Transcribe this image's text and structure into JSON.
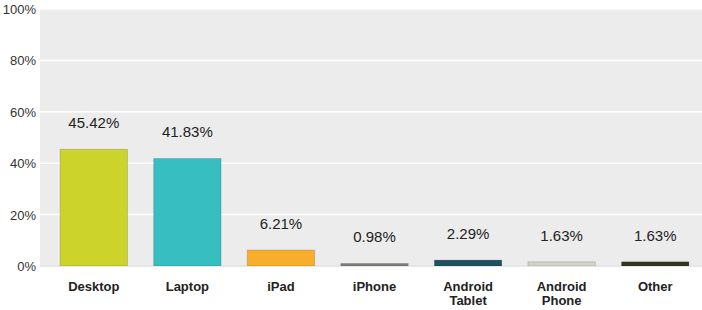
{
  "chart_data": {
    "type": "bar",
    "categories": [
      "Desktop",
      "Laptop",
      "iPad",
      "iPhone",
      "Android Tablet",
      "Android Phone",
      "Other"
    ],
    "values": [
      45.42,
      41.83,
      6.21,
      0.98,
      2.29,
      1.63,
      1.63
    ],
    "value_labels": [
      "45.42%",
      "41.83%",
      "6.21%",
      "0.98%",
      "2.29%",
      "1.63%",
      "1.63%"
    ],
    "colors": [
      "#ccd32b",
      "#36bec1",
      "#f6ae2b",
      "#7d7d78",
      "#1f4f60",
      "#d3d3c6",
      "#33361f"
    ],
    "ylim": [
      0,
      100
    ],
    "yticks": [
      {
        "value": 0,
        "label": "0%"
      },
      {
        "value": 20,
        "label": "20%"
      },
      {
        "value": 40,
        "label": "40%"
      },
      {
        "value": 60,
        "label": "60%"
      },
      {
        "value": 80,
        "label": "80%"
      },
      {
        "value": 100,
        "label": "100%"
      }
    ],
    "grid": true,
    "data_labels": true
  }
}
